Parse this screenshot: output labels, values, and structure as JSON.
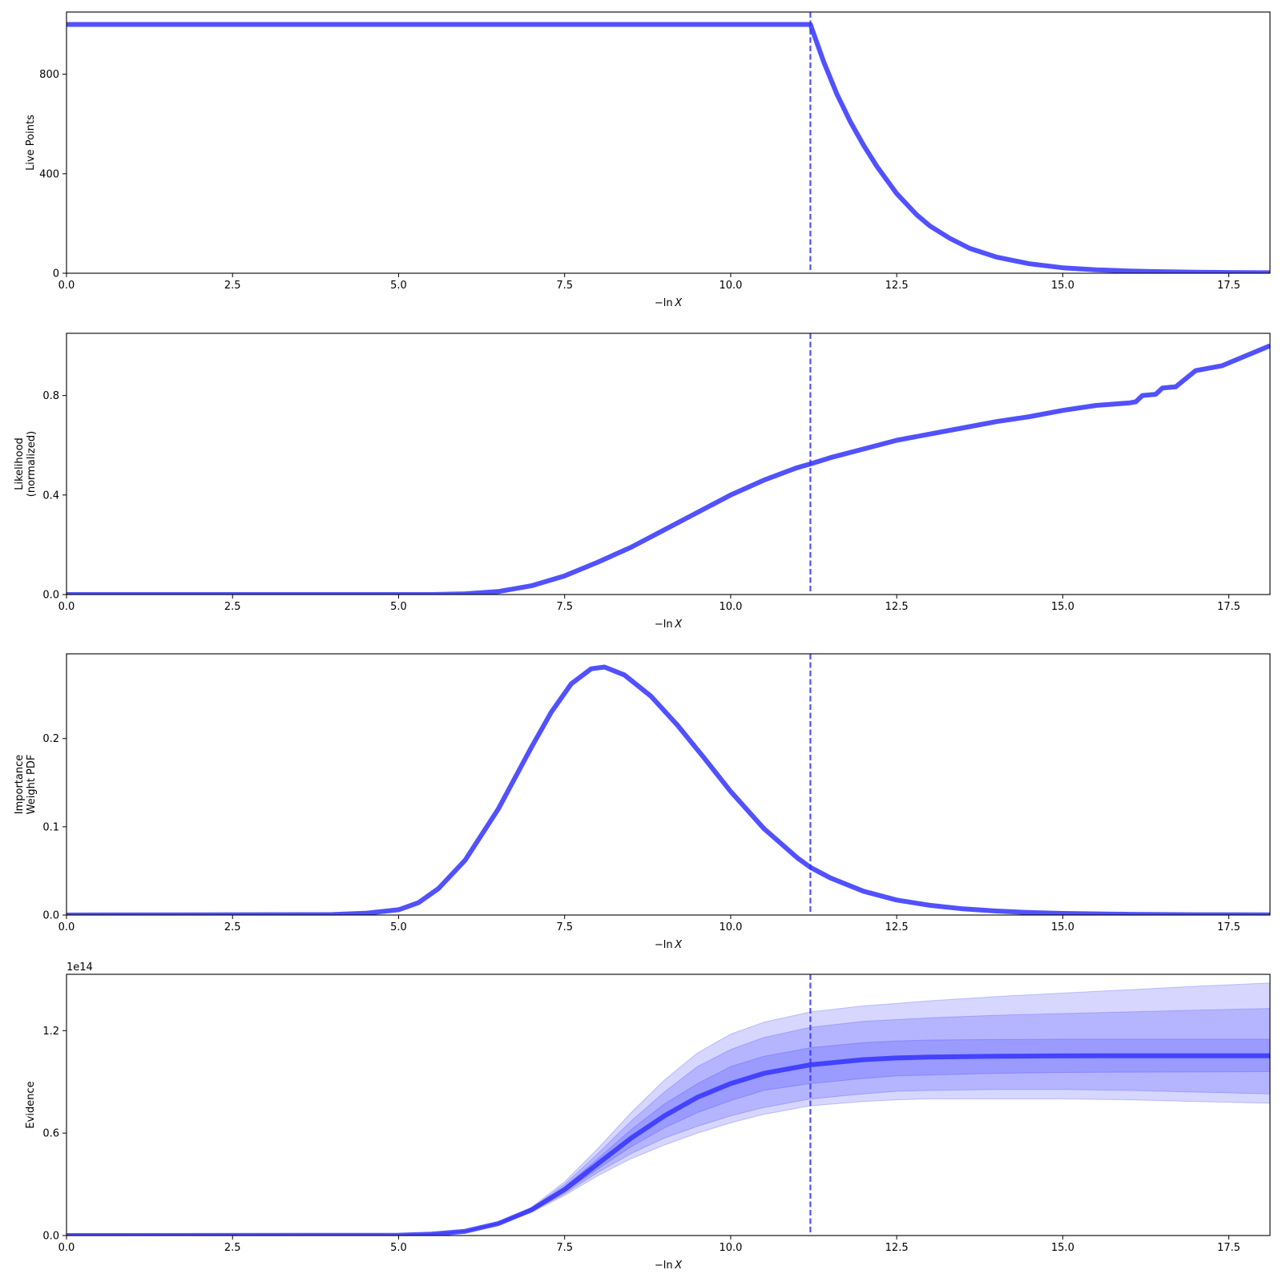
{
  "colors": {
    "line": "#3333ff",
    "band": "#3333ff",
    "axes": "#000000",
    "background": "#ffffff"
  },
  "chart_data": [
    {
      "type": "line",
      "ylabel_lines": [
        "Live Points"
      ],
      "xlabel_prefix": "−ln",
      "xlabel_var": "X",
      "xlim": [
        0,
        18.12
      ],
      "ylim": [
        0,
        1050
      ],
      "xticks": [
        0.0,
        2.5,
        5.0,
        7.5,
        10.0,
        12.5,
        15.0,
        17.5
      ],
      "xtick_labels": [
        "0.0",
        "2.5",
        "5.0",
        "7.5",
        "10.0",
        "12.5",
        "15.0",
        "17.5"
      ],
      "yticks": [
        0,
        400,
        800
      ],
      "ytick_labels": [
        "0",
        "400",
        "800"
      ],
      "vline_x": 11.2,
      "grid": false,
      "series": [
        {
          "x": [
            0,
            11.2,
            11.4,
            11.6,
            11.8,
            12.0,
            12.2,
            12.5,
            12.8,
            13.0,
            13.3,
            13.6,
            14.0,
            14.5,
            15.0,
            15.5,
            16.0,
            16.5,
            17.0,
            17.5,
            18.12
          ],
          "y": [
            1000,
            1000,
            850,
            720,
            610,
            515,
            430,
            320,
            235,
            190,
            140,
            100,
            65,
            38,
            22,
            14,
            9,
            6,
            4,
            3,
            2
          ]
        }
      ]
    },
    {
      "type": "line",
      "ylabel_lines": [
        "Likelihood",
        "(normalized)"
      ],
      "xlabel_prefix": "−ln",
      "xlabel_var": "X",
      "xlim": [
        0,
        18.12
      ],
      "ylim": [
        0,
        1.05
      ],
      "xticks": [
        0.0,
        2.5,
        5.0,
        7.5,
        10.0,
        12.5,
        15.0,
        17.5
      ],
      "xtick_labels": [
        "0.0",
        "2.5",
        "5.0",
        "7.5",
        "10.0",
        "12.5",
        "15.0",
        "17.5"
      ],
      "yticks": [
        0.0,
        0.4,
        0.8
      ],
      "ytick_labels": [
        "0.0",
        "0.4",
        "0.8"
      ],
      "vline_x": 11.2,
      "grid": false,
      "series": [
        {
          "x": [
            0,
            5.5,
            6.0,
            6.5,
            7.0,
            7.5,
            8.0,
            8.5,
            9.0,
            9.5,
            10.0,
            10.5,
            11.0,
            11.2,
            11.5,
            12.0,
            12.5,
            13.0,
            13.5,
            14.0,
            14.5,
            15.0,
            15.5,
            16.0,
            16.1,
            16.2,
            16.4,
            16.5,
            16.7,
            17.0,
            17.4,
            18.12
          ],
          "y": [
            0.0,
            0.0,
            0.003,
            0.012,
            0.035,
            0.075,
            0.13,
            0.19,
            0.26,
            0.33,
            0.4,
            0.46,
            0.51,
            0.525,
            0.55,
            0.585,
            0.62,
            0.645,
            0.67,
            0.695,
            0.715,
            0.74,
            0.76,
            0.77,
            0.775,
            0.8,
            0.805,
            0.83,
            0.835,
            0.9,
            0.92,
            1.0
          ]
        }
      ]
    },
    {
      "type": "line",
      "ylabel_lines": [
        "Importance",
        "Weight PDF"
      ],
      "xlabel_prefix": "−ln",
      "xlabel_var": "X",
      "xlim": [
        0,
        18.12
      ],
      "ylim": [
        0,
        0.296
      ],
      "xticks": [
        0.0,
        2.5,
        5.0,
        7.5,
        10.0,
        12.5,
        15.0,
        17.5
      ],
      "xtick_labels": [
        "0.0",
        "2.5",
        "5.0",
        "7.5",
        "10.0",
        "12.5",
        "15.0",
        "17.5"
      ],
      "yticks": [
        0.0,
        0.1,
        0.2
      ],
      "ytick_labels": [
        "0.0",
        "0.1",
        "0.2"
      ],
      "vline_x": 11.2,
      "grid": false,
      "series": [
        {
          "x": [
            0,
            4.0,
            4.5,
            5.0,
            5.3,
            5.6,
            6.0,
            6.5,
            7.0,
            7.3,
            7.6,
            7.9,
            8.1,
            8.4,
            8.8,
            9.2,
            9.6,
            10.0,
            10.5,
            11.0,
            11.2,
            11.5,
            12.0,
            12.5,
            13.0,
            13.5,
            14.0,
            14.5,
            15.0,
            16.0,
            17.0,
            18.12
          ],
          "y": [
            0.0,
            0.0005,
            0.002,
            0.006,
            0.014,
            0.03,
            0.062,
            0.12,
            0.19,
            0.23,
            0.262,
            0.279,
            0.281,
            0.272,
            0.248,
            0.215,
            0.178,
            0.14,
            0.098,
            0.065,
            0.054,
            0.042,
            0.027,
            0.017,
            0.011,
            0.007,
            0.0045,
            0.0028,
            0.0018,
            0.0008,
            0.0004,
            0.0002
          ]
        }
      ]
    },
    {
      "type": "area",
      "ylabel_lines": [
        "Evidence"
      ],
      "xlabel_prefix": "−ln",
      "xlabel_var": "X",
      "offset_label": "1e14",
      "xlim": [
        0,
        18.12
      ],
      "ylim": [
        0,
        1.53
      ],
      "xticks": [
        0.0,
        2.5,
        5.0,
        7.5,
        10.0,
        12.5,
        15.0,
        17.5
      ],
      "xtick_labels": [
        "0.0",
        "2.5",
        "5.0",
        "7.5",
        "10.0",
        "12.5",
        "15.0",
        "17.5"
      ],
      "yticks": [
        0.0,
        0.6,
        1.2
      ],
      "ytick_labels": [
        "0.0",
        "0.6",
        "1.2"
      ],
      "vline_x": 11.2,
      "grid": false,
      "x": [
        0,
        5.0,
        5.5,
        6.0,
        6.5,
        7.0,
        7.5,
        8.0,
        8.5,
        9.0,
        9.5,
        10.0,
        10.5,
        11.2,
        12.0,
        12.5,
        13.0,
        14.0,
        15.0,
        16.0,
        17.0,
        18.12
      ],
      "series": [
        {
          "name": "",
          "role": "center",
          "values": [
            0,
            0.002,
            0.008,
            0.025,
            0.07,
            0.15,
            0.27,
            0.42,
            0.57,
            0.7,
            0.81,
            0.89,
            0.95,
            1.0,
            1.03,
            1.04,
            1.045,
            1.05,
            1.052,
            1.053,
            1.053,
            1.053
          ]
        },
        {
          "name": "",
          "role": "band1_low",
          "values": [
            0,
            0.002,
            0.008,
            0.024,
            0.068,
            0.145,
            0.255,
            0.39,
            0.52,
            0.63,
            0.72,
            0.79,
            0.85,
            0.89,
            0.92,
            0.935,
            0.94,
            0.95,
            0.955,
            0.957,
            0.958,
            0.96
          ]
        },
        {
          "name": "",
          "role": "band1_high",
          "values": [
            0,
            0.002,
            0.008,
            0.026,
            0.072,
            0.155,
            0.285,
            0.45,
            0.62,
            0.77,
            0.89,
            0.99,
            1.05,
            1.1,
            1.13,
            1.14,
            1.145,
            1.148,
            1.15,
            1.15,
            1.15,
            1.15
          ]
        },
        {
          "name": "",
          "role": "band2_low",
          "values": [
            0,
            0.002,
            0.008,
            0.023,
            0.066,
            0.14,
            0.245,
            0.37,
            0.48,
            0.57,
            0.64,
            0.7,
            0.75,
            0.8,
            0.83,
            0.845,
            0.85,
            0.855,
            0.855,
            0.85,
            0.84,
            0.83
          ]
        },
        {
          "name": "",
          "role": "band2_high",
          "values": [
            0,
            0.002,
            0.008,
            0.027,
            0.074,
            0.16,
            0.3,
            0.48,
            0.67,
            0.84,
            0.99,
            1.09,
            1.16,
            1.22,
            1.255,
            1.265,
            1.275,
            1.29,
            1.3,
            1.31,
            1.32,
            1.33
          ]
        },
        {
          "name": "",
          "role": "band3_low",
          "values": [
            0,
            0.002,
            0.008,
            0.022,
            0.064,
            0.135,
            0.235,
            0.35,
            0.45,
            0.53,
            0.6,
            0.66,
            0.71,
            0.76,
            0.785,
            0.795,
            0.8,
            0.8,
            0.8,
            0.795,
            0.785,
            0.775
          ]
        },
        {
          "name": "",
          "role": "band3_high",
          "values": [
            0,
            0.002,
            0.008,
            0.028,
            0.076,
            0.165,
            0.315,
            0.51,
            0.72,
            0.91,
            1.07,
            1.18,
            1.25,
            1.31,
            1.345,
            1.36,
            1.375,
            1.4,
            1.42,
            1.44,
            1.46,
            1.48
          ]
        }
      ]
    }
  ]
}
